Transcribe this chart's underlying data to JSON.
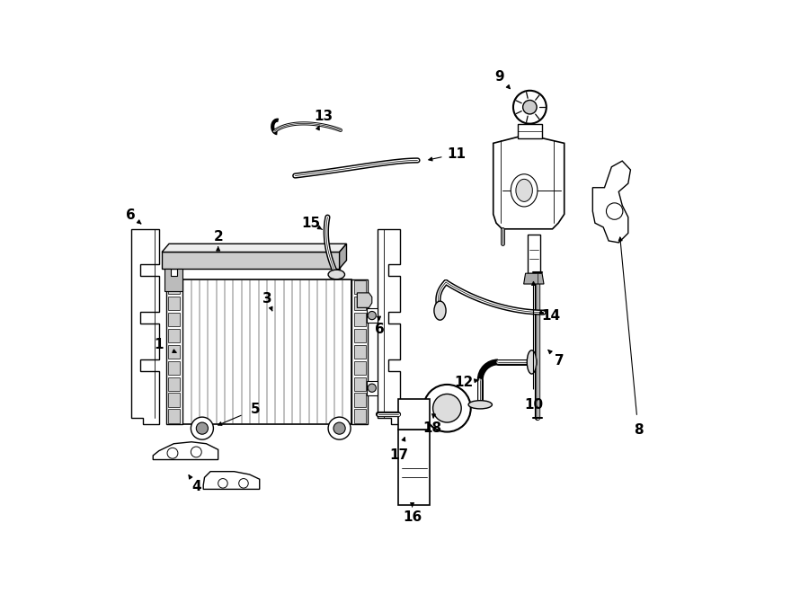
{
  "bg_color": "#ffffff",
  "line_color": "#000000",
  "fig_width": 9.0,
  "fig_height": 6.61,
  "dpi": 100,
  "label_fontsize": 11
}
